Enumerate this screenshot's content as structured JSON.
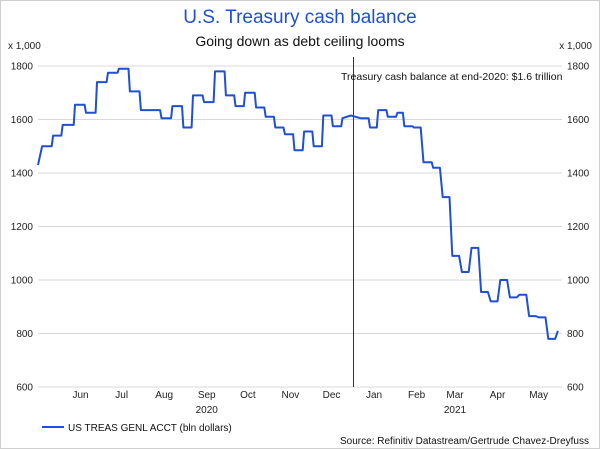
{
  "chart_data": {
    "type": "line",
    "title": "U.S. Treasury cash balance",
    "subtitle": "Going down as debt ceiling looms",
    "unit_label_left": "x 1,000",
    "unit_label_right": "x 1,000",
    "ylim": [
      600,
      1800
    ],
    "y_ticks": [
      600,
      800,
      1000,
      1200,
      1400,
      1600,
      1800
    ],
    "y_tick_labels": [
      "600",
      "800",
      "1000",
      "1200",
      "1400",
      "1600",
      "1800"
    ],
    "xlim": [
      "2020-05-15",
      "2021-06-01"
    ],
    "x_ticks": [
      {
        "date": "2020-06-15",
        "label": "Jun"
      },
      {
        "date": "2020-07-15",
        "label": "Jul"
      },
      {
        "date": "2020-08-15",
        "label": "Aug"
      },
      {
        "date": "2020-09-15",
        "label": "Sep"
      },
      {
        "date": "2020-10-15",
        "label": "Oct"
      },
      {
        "date": "2020-11-15",
        "label": "Nov"
      },
      {
        "date": "2020-12-15",
        "label": "Dec"
      },
      {
        "date": "2021-01-15",
        "label": "Jan"
      },
      {
        "date": "2021-02-15",
        "label": "Feb"
      },
      {
        "date": "2021-03-15",
        "label": "Mar"
      },
      {
        "date": "2021-04-15",
        "label": "Apr"
      },
      {
        "date": "2021-05-15",
        "label": "May"
      }
    ],
    "year_labels": [
      {
        "date": "2020-09-15",
        "label": "2020"
      },
      {
        "date": "2021-03-15",
        "label": "2021"
      }
    ],
    "grid": true,
    "colors": {
      "line": "#1f4fd6",
      "title": "#1f4fd6",
      "grid": "#d9d9d9"
    },
    "reference_line": {
      "date": "2020-12-31",
      "label": "Treasury cash balance at end-2020: $1.6 trillion"
    },
    "series": [
      {
        "name": "US TREAS GENL ACCT (bln dollars)",
        "points": [
          [
            "2020-05-15",
            1430
          ],
          [
            "2020-05-18",
            1500
          ],
          [
            "2020-05-25",
            1500
          ],
          [
            "2020-05-26",
            1540
          ],
          [
            "2020-06-01",
            1540
          ],
          [
            "2020-06-02",
            1580
          ],
          [
            "2020-06-10",
            1580
          ],
          [
            "2020-06-11",
            1655
          ],
          [
            "2020-06-18",
            1655
          ],
          [
            "2020-06-19",
            1625
          ],
          [
            "2020-06-26",
            1625
          ],
          [
            "2020-06-27",
            1740
          ],
          [
            "2020-07-04",
            1740
          ],
          [
            "2020-07-05",
            1775
          ],
          [
            "2020-07-12",
            1775
          ],
          [
            "2020-07-13",
            1790
          ],
          [
            "2020-07-20",
            1790
          ],
          [
            "2020-07-21",
            1705
          ],
          [
            "2020-07-28",
            1705
          ],
          [
            "2020-07-29",
            1635
          ],
          [
            "2020-08-12",
            1635
          ],
          [
            "2020-08-13",
            1605
          ],
          [
            "2020-08-20",
            1605
          ],
          [
            "2020-08-21",
            1650
          ],
          [
            "2020-08-28",
            1650
          ],
          [
            "2020-08-29",
            1570
          ],
          [
            "2020-09-04",
            1570
          ],
          [
            "2020-09-05",
            1690
          ],
          [
            "2020-09-12",
            1690
          ],
          [
            "2020-09-13",
            1665
          ],
          [
            "2020-09-20",
            1665
          ],
          [
            "2020-09-21",
            1780
          ],
          [
            "2020-09-28",
            1780
          ],
          [
            "2020-09-29",
            1690
          ],
          [
            "2020-10-05",
            1690
          ],
          [
            "2020-10-06",
            1650
          ],
          [
            "2020-10-12",
            1650
          ],
          [
            "2020-10-13",
            1700
          ],
          [
            "2020-10-20",
            1700
          ],
          [
            "2020-10-21",
            1645
          ],
          [
            "2020-10-27",
            1645
          ],
          [
            "2020-10-28",
            1610
          ],
          [
            "2020-11-03",
            1610
          ],
          [
            "2020-11-04",
            1570
          ],
          [
            "2020-11-10",
            1570
          ],
          [
            "2020-11-11",
            1545
          ],
          [
            "2020-11-17",
            1545
          ],
          [
            "2020-11-18",
            1485
          ],
          [
            "2020-11-24",
            1485
          ],
          [
            "2020-11-25",
            1555
          ],
          [
            "2020-12-01",
            1555
          ],
          [
            "2020-12-02",
            1500
          ],
          [
            "2020-12-08",
            1500
          ],
          [
            "2020-12-09",
            1615
          ],
          [
            "2020-12-15",
            1615
          ],
          [
            "2020-12-16",
            1575
          ],
          [
            "2020-12-22",
            1575
          ],
          [
            "2020-12-23",
            1605
          ],
          [
            "2020-12-29",
            1615
          ],
          [
            "2021-01-05",
            1605
          ],
          [
            "2021-01-11",
            1605
          ],
          [
            "2021-01-12",
            1570
          ],
          [
            "2021-01-17",
            1570
          ],
          [
            "2021-01-18",
            1635
          ],
          [
            "2021-01-24",
            1635
          ],
          [
            "2021-01-25",
            1610
          ],
          [
            "2021-01-31",
            1610
          ],
          [
            "2021-02-01",
            1625
          ],
          [
            "2021-02-05",
            1625
          ],
          [
            "2021-02-06",
            1575
          ],
          [
            "2021-02-12",
            1575
          ],
          [
            "2021-02-13",
            1570
          ],
          [
            "2021-02-18",
            1570
          ],
          [
            "2021-02-20",
            1440
          ],
          [
            "2021-02-26",
            1440
          ],
          [
            "2021-02-27",
            1420
          ],
          [
            "2021-03-04",
            1420
          ],
          [
            "2021-03-06",
            1310
          ],
          [
            "2021-03-11",
            1310
          ],
          [
            "2021-03-13",
            1090
          ],
          [
            "2021-03-18",
            1090
          ],
          [
            "2021-03-20",
            1030
          ],
          [
            "2021-03-25",
            1030
          ],
          [
            "2021-03-27",
            1120
          ],
          [
            "2021-04-01",
            1120
          ],
          [
            "2021-04-03",
            955
          ],
          [
            "2021-04-08",
            955
          ],
          [
            "2021-04-10",
            920
          ],
          [
            "2021-04-15",
            920
          ],
          [
            "2021-04-17",
            1000
          ],
          [
            "2021-04-22",
            1000
          ],
          [
            "2021-04-24",
            935
          ],
          [
            "2021-04-29",
            935
          ],
          [
            "2021-05-01",
            945
          ],
          [
            "2021-05-06",
            945
          ],
          [
            "2021-05-08",
            865
          ],
          [
            "2021-05-13",
            865
          ],
          [
            "2021-05-15",
            860
          ],
          [
            "2021-05-20",
            860
          ],
          [
            "2021-05-22",
            780
          ],
          [
            "2021-05-27",
            780
          ],
          [
            "2021-05-29",
            810
          ]
        ]
      }
    ],
    "legend_position": "bottom-left",
    "source": "Source: Refinitiv Datastream/Gertrude Chavez-Dreyfuss"
  }
}
